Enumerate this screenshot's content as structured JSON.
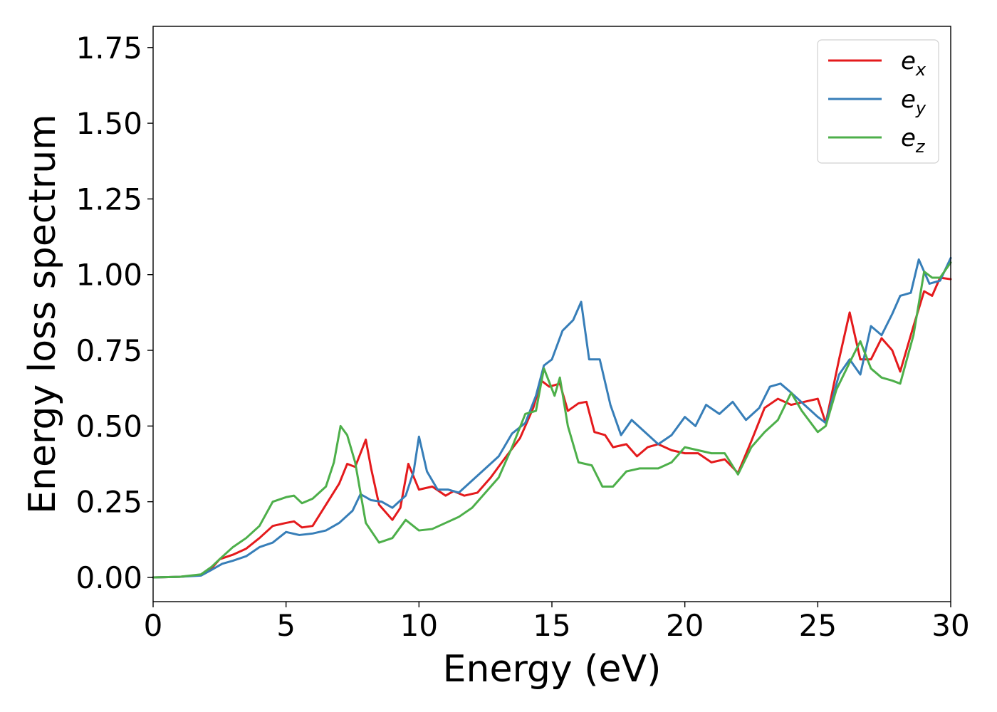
{
  "chart_data": {
    "type": "line",
    "title": "",
    "xlabel": "Energy (eV)",
    "ylabel": "Energy loss spectrum",
    "xlim": [
      0,
      30
    ],
    "ylim": [
      -0.08,
      1.82
    ],
    "xticks": [
      0,
      5,
      10,
      15,
      20,
      25,
      30
    ],
    "xtick_labels": [
      "0",
      "5",
      "10",
      "15",
      "20",
      "25",
      "30"
    ],
    "yticks": [
      0.0,
      0.25,
      0.5,
      0.75,
      1.0,
      1.25,
      1.5,
      1.75
    ],
    "ytick_labels": [
      "0.00",
      "0.25",
      "0.50",
      "0.75",
      "1.00",
      "1.25",
      "1.50",
      "1.75"
    ],
    "grid": false,
    "legend_position": "top-right",
    "series": [
      {
        "name": "e_x",
        "label_main": "e",
        "label_sub": "x",
        "color": "#e41a1c",
        "points": [
          [
            0,
            0
          ],
          [
            1,
            0.002
          ],
          [
            1.8,
            0.008
          ],
          [
            2.2,
            0.03
          ],
          [
            2.5,
            0.06
          ],
          [
            3,
            0.075
          ],
          [
            3.5,
            0.095
          ],
          [
            4,
            0.13
          ],
          [
            4.5,
            0.17
          ],
          [
            5,
            0.18
          ],
          [
            5.3,
            0.185
          ],
          [
            5.6,
            0.165
          ],
          [
            6,
            0.17
          ],
          [
            6.5,
            0.24
          ],
          [
            7,
            0.31
          ],
          [
            7.3,
            0.375
          ],
          [
            7.6,
            0.365
          ],
          [
            7.8,
            0.41
          ],
          [
            8,
            0.455
          ],
          [
            8.2,
            0.36
          ],
          [
            8.5,
            0.24
          ],
          [
            9,
            0.19
          ],
          [
            9.3,
            0.23
          ],
          [
            9.6,
            0.375
          ],
          [
            10,
            0.29
          ],
          [
            10.5,
            0.3
          ],
          [
            11,
            0.27
          ],
          [
            11.3,
            0.285
          ],
          [
            11.7,
            0.27
          ],
          [
            12.2,
            0.28
          ],
          [
            12.7,
            0.33
          ],
          [
            13.2,
            0.39
          ],
          [
            13.8,
            0.46
          ],
          [
            14.3,
            0.56
          ],
          [
            14.6,
            0.65
          ],
          [
            14.9,
            0.63
          ],
          [
            15.3,
            0.64
          ],
          [
            15.6,
            0.55
          ],
          [
            16,
            0.575
          ],
          [
            16.3,
            0.58
          ],
          [
            16.6,
            0.48
          ],
          [
            17,
            0.47
          ],
          [
            17.3,
            0.43
          ],
          [
            17.8,
            0.44
          ],
          [
            18.2,
            0.4
          ],
          [
            18.6,
            0.43
          ],
          [
            19,
            0.44
          ],
          [
            19.5,
            0.42
          ],
          [
            20,
            0.41
          ],
          [
            20.5,
            0.41
          ],
          [
            21,
            0.38
          ],
          [
            21.5,
            0.39
          ],
          [
            22,
            0.345
          ],
          [
            22.5,
            0.45
          ],
          [
            23,
            0.56
          ],
          [
            23.5,
            0.59
          ],
          [
            24,
            0.57
          ],
          [
            24.5,
            0.58
          ],
          [
            25,
            0.59
          ],
          [
            25.3,
            0.51
          ],
          [
            25.8,
            0.72
          ],
          [
            26.2,
            0.875
          ],
          [
            26.6,
            0.72
          ],
          [
            27,
            0.72
          ],
          [
            27.4,
            0.79
          ],
          [
            27.8,
            0.75
          ],
          [
            28.1,
            0.68
          ],
          [
            28.6,
            0.83
          ],
          [
            29,
            0.945
          ],
          [
            29.3,
            0.93
          ],
          [
            29.6,
            0.99
          ],
          [
            30,
            0.985
          ]
        ]
      },
      {
        "name": "e_y",
        "label_main": "e",
        "label_sub": "y",
        "color": "#377eb8",
        "points": [
          [
            0,
            0
          ],
          [
            1,
            0.002
          ],
          [
            1.8,
            0.006
          ],
          [
            2.2,
            0.025
          ],
          [
            2.6,
            0.045
          ],
          [
            3,
            0.055
          ],
          [
            3.5,
            0.07
          ],
          [
            4,
            0.1
          ],
          [
            4.5,
            0.115
          ],
          [
            5,
            0.15
          ],
          [
            5.5,
            0.14
          ],
          [
            6,
            0.145
          ],
          [
            6.5,
            0.155
          ],
          [
            7,
            0.18
          ],
          [
            7.5,
            0.22
          ],
          [
            7.8,
            0.275
          ],
          [
            8.2,
            0.255
          ],
          [
            8.6,
            0.25
          ],
          [
            9,
            0.23
          ],
          [
            9.5,
            0.27
          ],
          [
            9.8,
            0.35
          ],
          [
            10,
            0.465
          ],
          [
            10.3,
            0.35
          ],
          [
            10.7,
            0.29
          ],
          [
            11.1,
            0.29
          ],
          [
            11.5,
            0.28
          ],
          [
            12,
            0.32
          ],
          [
            12.5,
            0.36
          ],
          [
            13,
            0.4
          ],
          [
            13.5,
            0.475
          ],
          [
            14,
            0.51
          ],
          [
            14.4,
            0.6
          ],
          [
            14.7,
            0.7
          ],
          [
            15,
            0.72
          ],
          [
            15.4,
            0.815
          ],
          [
            15.8,
            0.85
          ],
          [
            16.1,
            0.91
          ],
          [
            16.4,
            0.72
          ],
          [
            16.8,
            0.72
          ],
          [
            17.2,
            0.57
          ],
          [
            17.6,
            0.47
          ],
          [
            18,
            0.52
          ],
          [
            18.5,
            0.48
          ],
          [
            19,
            0.44
          ],
          [
            19.5,
            0.47
          ],
          [
            20,
            0.53
          ],
          [
            20.4,
            0.5
          ],
          [
            20.8,
            0.57
          ],
          [
            21.3,
            0.54
          ],
          [
            21.8,
            0.58
          ],
          [
            22.3,
            0.52
          ],
          [
            22.8,
            0.56
          ],
          [
            23.2,
            0.63
          ],
          [
            23.6,
            0.64
          ],
          [
            24,
            0.61
          ],
          [
            24.5,
            0.57
          ],
          [
            25,
            0.53
          ],
          [
            25.3,
            0.51
          ],
          [
            25.8,
            0.67
          ],
          [
            26.2,
            0.72
          ],
          [
            26.6,
            0.67
          ],
          [
            27,
            0.83
          ],
          [
            27.4,
            0.8
          ],
          [
            27.8,
            0.87
          ],
          [
            28.1,
            0.93
          ],
          [
            28.5,
            0.94
          ],
          [
            28.8,
            1.05
          ],
          [
            29.2,
            0.97
          ],
          [
            29.6,
            0.98
          ],
          [
            30,
            1.055
          ]
        ]
      },
      {
        "name": "e_z",
        "label_main": "e",
        "label_sub": "z",
        "color": "#4daf4a",
        "points": [
          [
            0,
            0
          ],
          [
            1,
            0.002
          ],
          [
            1.8,
            0.01
          ],
          [
            2.2,
            0.035
          ],
          [
            2.5,
            0.06
          ],
          [
            3,
            0.1
          ],
          [
            3.5,
            0.13
          ],
          [
            4,
            0.17
          ],
          [
            4.5,
            0.25
          ],
          [
            5,
            0.265
          ],
          [
            5.3,
            0.27
          ],
          [
            5.6,
            0.245
          ],
          [
            6,
            0.26
          ],
          [
            6.5,
            0.3
          ],
          [
            6.8,
            0.38
          ],
          [
            7.05,
            0.5
          ],
          [
            7.3,
            0.47
          ],
          [
            7.6,
            0.38
          ],
          [
            8,
            0.18
          ],
          [
            8.5,
            0.115
          ],
          [
            9,
            0.13
          ],
          [
            9.5,
            0.19
          ],
          [
            10,
            0.155
          ],
          [
            10.5,
            0.16
          ],
          [
            11,
            0.18
          ],
          [
            11.5,
            0.2
          ],
          [
            12,
            0.23
          ],
          [
            12.5,
            0.28
          ],
          [
            13,
            0.33
          ],
          [
            13.5,
            0.43
          ],
          [
            14,
            0.54
          ],
          [
            14.4,
            0.55
          ],
          [
            14.7,
            0.69
          ],
          [
            15.1,
            0.6
          ],
          [
            15.3,
            0.66
          ],
          [
            15.6,
            0.5
          ],
          [
            16,
            0.38
          ],
          [
            16.5,
            0.37
          ],
          [
            16.9,
            0.3
          ],
          [
            17.3,
            0.3
          ],
          [
            17.8,
            0.35
          ],
          [
            18.3,
            0.36
          ],
          [
            19,
            0.36
          ],
          [
            19.5,
            0.38
          ],
          [
            20,
            0.43
          ],
          [
            20.5,
            0.42
          ],
          [
            21,
            0.41
          ],
          [
            21.5,
            0.41
          ],
          [
            22,
            0.34
          ],
          [
            22.5,
            0.43
          ],
          [
            23,
            0.48
          ],
          [
            23.5,
            0.52
          ],
          [
            24,
            0.61
          ],
          [
            24.4,
            0.55
          ],
          [
            25,
            0.48
          ],
          [
            25.3,
            0.5
          ],
          [
            25.7,
            0.62
          ],
          [
            26.2,
            0.71
          ],
          [
            26.6,
            0.78
          ],
          [
            27,
            0.69
          ],
          [
            27.4,
            0.66
          ],
          [
            27.8,
            0.65
          ],
          [
            28.1,
            0.64
          ],
          [
            28.6,
            0.8
          ],
          [
            29,
            1.01
          ],
          [
            29.3,
            0.99
          ],
          [
            29.6,
            0.99
          ],
          [
            30,
            1.04
          ]
        ]
      }
    ]
  }
}
